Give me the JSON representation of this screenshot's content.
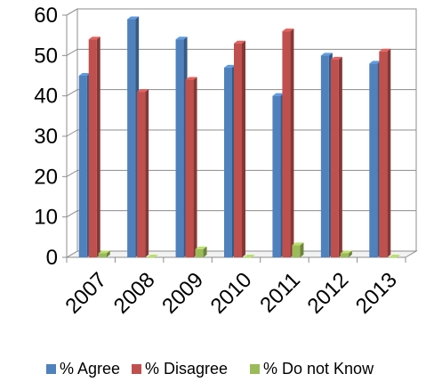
{
  "chart_data": {
    "type": "bar",
    "title": "",
    "xlabel": "",
    "ylabel": "",
    "categories": [
      "2007",
      "2008",
      "2009",
      "2010",
      "2011",
      "2012",
      "2013"
    ],
    "series": [
      {
        "name": "% Agree",
        "color": "#4F81BD",
        "values": [
          45,
          59,
          54,
          47,
          40,
          50,
          48
        ]
      },
      {
        "name": "% Disagree",
        "color": "#C0504D",
        "values": [
          54,
          41,
          44,
          53,
          56,
          49,
          51
        ]
      },
      {
        "name": "% Do not Know",
        "color": "#9BBB59",
        "values": [
          1,
          0,
          2,
          0,
          3,
          1,
          0
        ]
      }
    ],
    "ylim": [
      0,
      60
    ],
    "yticks": [
      0,
      10,
      20,
      30,
      40,
      50,
      60
    ],
    "grid": true,
    "legend_position": "bottom",
    "style": "3d-clustered-column"
  }
}
